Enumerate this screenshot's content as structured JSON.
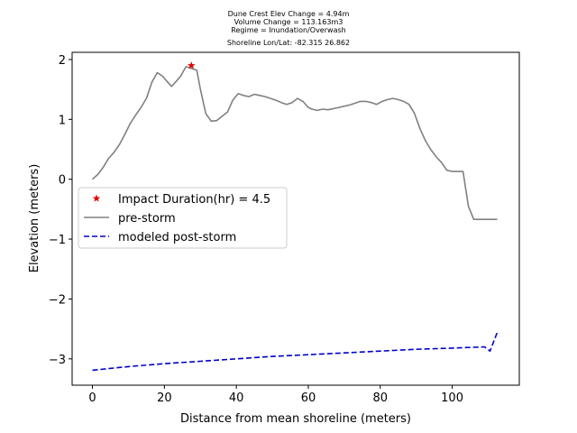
{
  "chart_data": {
    "type": "line",
    "title_lines": [
      "Dune Crest Elev Change = 4.94m",
      "Volume Change = 113.163m3",
      "Regime = Inundation/Overwash",
      "Shoreline Lon/Lat: -82.315 26.862"
    ],
    "xlabel": "Distance from mean shoreline (meters)",
    "ylabel": "Elevation (meters)",
    "xlim": [
      -5.65,
      118.65
    ],
    "ylim": [
      -3.44,
      2.12
    ],
    "xticks": [
      0,
      20,
      40,
      60,
      80,
      100
    ],
    "yticks": [
      -3,
      -2,
      -1,
      0,
      1,
      2
    ],
    "tick_labels_x": [
      "0",
      "20",
      "40",
      "60",
      "80",
      "100"
    ],
    "tick_labels_y": [
      "−3",
      "−2",
      "−1",
      "0",
      "1",
      "2"
    ],
    "grid": false,
    "legend_position": "center-left",
    "series": [
      {
        "name": "pre-storm",
        "color": "#808080",
        "style": "solid",
        "x": [
          0,
          1.5,
          3,
          4.5,
          6,
          7.5,
          9,
          10.5,
          12,
          13.5,
          15,
          16.5,
          18,
          19.5,
          20.5,
          22,
          23.5,
          24.5,
          26,
          27.5,
          29,
          30,
          31.5,
          33,
          34.5,
          36,
          37.5,
          39,
          40.5,
          42,
          43.5,
          45,
          46.5,
          48,
          49.5,
          51,
          52.5,
          54,
          55.5,
          57,
          58.5,
          60,
          61,
          62.5,
          64,
          65.5,
          67,
          68.5,
          70,
          71.5,
          73,
          74.5,
          76,
          77.5,
          79,
          80.5,
          82,
          83.5,
          85,
          86.5,
          88,
          89.5,
          91,
          92.5,
          94,
          95.5,
          97,
          98.5,
          100,
          101.5,
          103,
          104.5,
          106,
          107.5,
          109,
          110.5,
          111,
          112.5
        ],
        "y": [
          0.0,
          0.08,
          0.2,
          0.35,
          0.45,
          0.58,
          0.75,
          0.93,
          1.07,
          1.2,
          1.35,
          1.62,
          1.78,
          1.72,
          1.65,
          1.55,
          1.65,
          1.72,
          1.88,
          1.85,
          1.82,
          1.5,
          1.1,
          0.97,
          0.98,
          1.05,
          1.12,
          1.32,
          1.43,
          1.4,
          1.38,
          1.42,
          1.4,
          1.38,
          1.35,
          1.32,
          1.28,
          1.25,
          1.28,
          1.35,
          1.3,
          1.2,
          1.17,
          1.15,
          1.17,
          1.16,
          1.18,
          1.2,
          1.22,
          1.24,
          1.27,
          1.3,
          1.3,
          1.28,
          1.25,
          1.3,
          1.33,
          1.35,
          1.33,
          1.3,
          1.25,
          1.1,
          0.85,
          0.65,
          0.5,
          0.38,
          0.28,
          0.15,
          0.13,
          0.13,
          0.13,
          -0.45,
          -0.67,
          -0.67,
          -0.67,
          -0.67,
          -0.67,
          -0.67
        ]
      },
      {
        "name": "modeled post-storm",
        "color": "#0000cc",
        "style": "dashed",
        "x": [
          0,
          10,
          20,
          30,
          40,
          50,
          60,
          70,
          80,
          90,
          100,
          109,
          110.5,
          112.5
        ],
        "y": [
          -3.19,
          -3.13,
          -3.08,
          -3.04,
          -3.0,
          -2.96,
          -2.93,
          -2.9,
          -2.87,
          -2.84,
          -2.82,
          -2.8,
          -2.87,
          -2.56
        ]
      }
    ],
    "markers": [
      {
        "name": "Impact Duration(hr) = 4.5",
        "color": "#e00000",
        "shape": "star",
        "x": 27.5,
        "y": 1.9
      }
    ]
  }
}
